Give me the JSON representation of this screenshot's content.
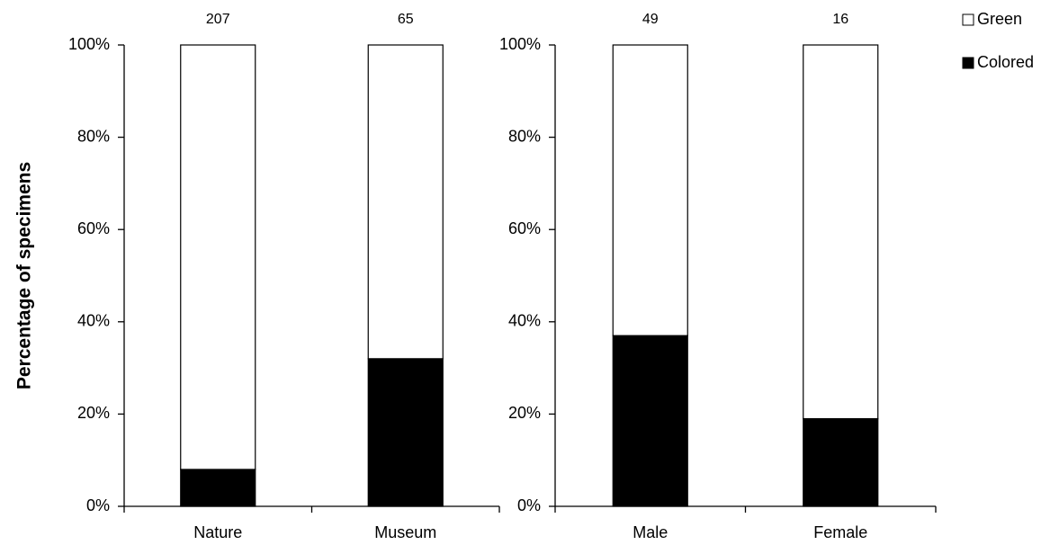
{
  "chart_data": [
    {
      "type": "bar",
      "stacked": true,
      "y_label": "Percentage of specimens",
      "categories": [
        "Nature",
        "Museum"
      ],
      "sample_sizes": [
        207,
        65
      ],
      "series": [
        {
          "color": "#000000",
          "values": [
            8,
            32
          ]
        },
        {
          "color": "#ffffff",
          "values": [
            92,
            68
          ]
        }
      ],
      "ylim": [
        0,
        100
      ],
      "yticks": [
        {
          "value": 0,
          "label": "0%"
        },
        {
          "value": 20,
          "label": "20%"
        },
        {
          "value": 40,
          "label": "40%"
        },
        {
          "value": 60,
          "label": "60%"
        },
        {
          "value": 80,
          "label": "80%"
        },
        {
          "value": 100,
          "label": "100%"
        }
      ]
    },
    {
      "type": "bar",
      "stacked": true,
      "legend": "upper right",
      "categories": [
        "Male",
        "Female"
      ],
      "sample_sizes": [
        49,
        16
      ],
      "series": [
        {
          "name": "Colored",
          "color": "#000000",
          "values": [
            37,
            19
          ]
        },
        {
          "name": "Green",
          "color": "#ffffff",
          "values": [
            63,
            81
          ]
        }
      ],
      "ylim": [
        0,
        100
      ],
      "yticks": [
        {
          "value": 0,
          "label": "0%"
        },
        {
          "value": 20,
          "label": "20%"
        },
        {
          "value": 40,
          "label": "40%"
        },
        {
          "value": 60,
          "label": "60%"
        },
        {
          "value": 80,
          "label": "80%"
        },
        {
          "value": 100,
          "label": "100%"
        }
      ]
    }
  ]
}
